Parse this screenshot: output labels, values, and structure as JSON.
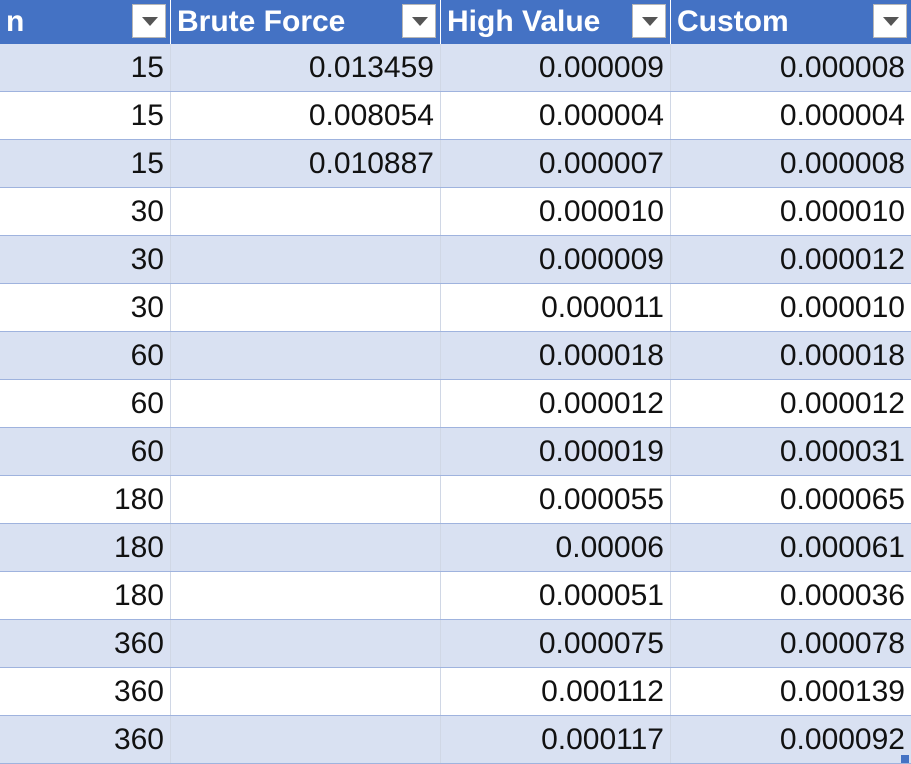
{
  "table": {
    "columns": [
      {
        "label": "n"
      },
      {
        "label": "Brute Force"
      },
      {
        "label": "High Value"
      },
      {
        "label": "Custom"
      }
    ],
    "rows": [
      [
        "15",
        "0.013459",
        "0.000009",
        "0.000008"
      ],
      [
        "15",
        "0.008054",
        "0.000004",
        "0.000004"
      ],
      [
        "15",
        "0.010887",
        "0.000007",
        "0.000008"
      ],
      [
        "30",
        "",
        "0.000010",
        "0.000010"
      ],
      [
        "30",
        "",
        "0.000009",
        "0.000012"
      ],
      [
        "30",
        "",
        "0.000011",
        "0.000010"
      ],
      [
        "60",
        "",
        "0.000018",
        "0.000018"
      ],
      [
        "60",
        "",
        "0.000012",
        "0.000012"
      ],
      [
        "60",
        "",
        "0.000019",
        "0.000031"
      ],
      [
        "180",
        "",
        "0.000055",
        "0.000065"
      ],
      [
        "180",
        "",
        "0.00006",
        "0.000061"
      ],
      [
        "180",
        "",
        "0.000051",
        "0.000036"
      ],
      [
        "360",
        "",
        "0.000075",
        "0.000078"
      ],
      [
        "360",
        "",
        "0.000112",
        "0.000139"
      ],
      [
        "360",
        "",
        "0.000117",
        "0.000092"
      ]
    ]
  },
  "colors": {
    "header": "#4472c4",
    "band": "#d9e1f2",
    "row_border": "#9fb3de"
  },
  "icons": {
    "filter": "chevron-down-icon",
    "resize": "resize-handle-icon"
  }
}
